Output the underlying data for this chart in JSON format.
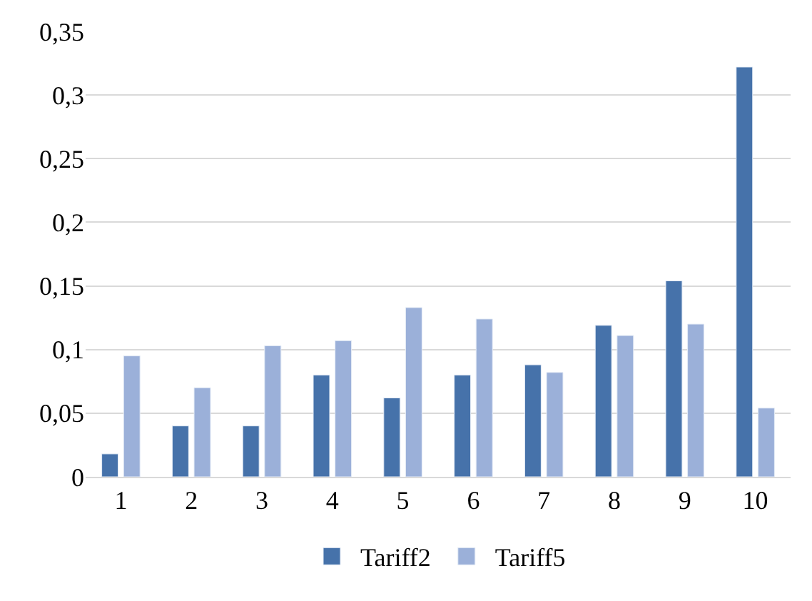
{
  "chart_data": {
    "type": "bar",
    "categories": [
      "1",
      "2",
      "3",
      "4",
      "5",
      "6",
      "7",
      "8",
      "9",
      "10"
    ],
    "series": [
      {
        "name": "Tariff2",
        "color": "#4672aa",
        "values": [
          0.018,
          0.04,
          0.04,
          0.08,
          0.062,
          0.08,
          0.088,
          0.119,
          0.154,
          0.322
        ]
      },
      {
        "name": "Tariff5",
        "color": "#9bb0d9",
        "values": [
          0.095,
          0.07,
          0.103,
          0.107,
          0.133,
          0.124,
          0.082,
          0.111,
          0.12,
          0.054
        ]
      }
    ],
    "ylim": [
      0,
      0.35
    ],
    "yticks": [
      {
        "value": 0,
        "label": "0"
      },
      {
        "value": 0.05,
        "label": "0,05"
      },
      {
        "value": 0.1,
        "label": "0,1"
      },
      {
        "value": 0.15,
        "label": "0,15"
      },
      {
        "value": 0.2,
        "label": "0,2"
      },
      {
        "value": 0.25,
        "label": "0,25"
      },
      {
        "value": 0.3,
        "label": "0,3"
      },
      {
        "value": 0.35,
        "label": "0,35"
      }
    ],
    "grid": "y",
    "legend": "bottom"
  }
}
